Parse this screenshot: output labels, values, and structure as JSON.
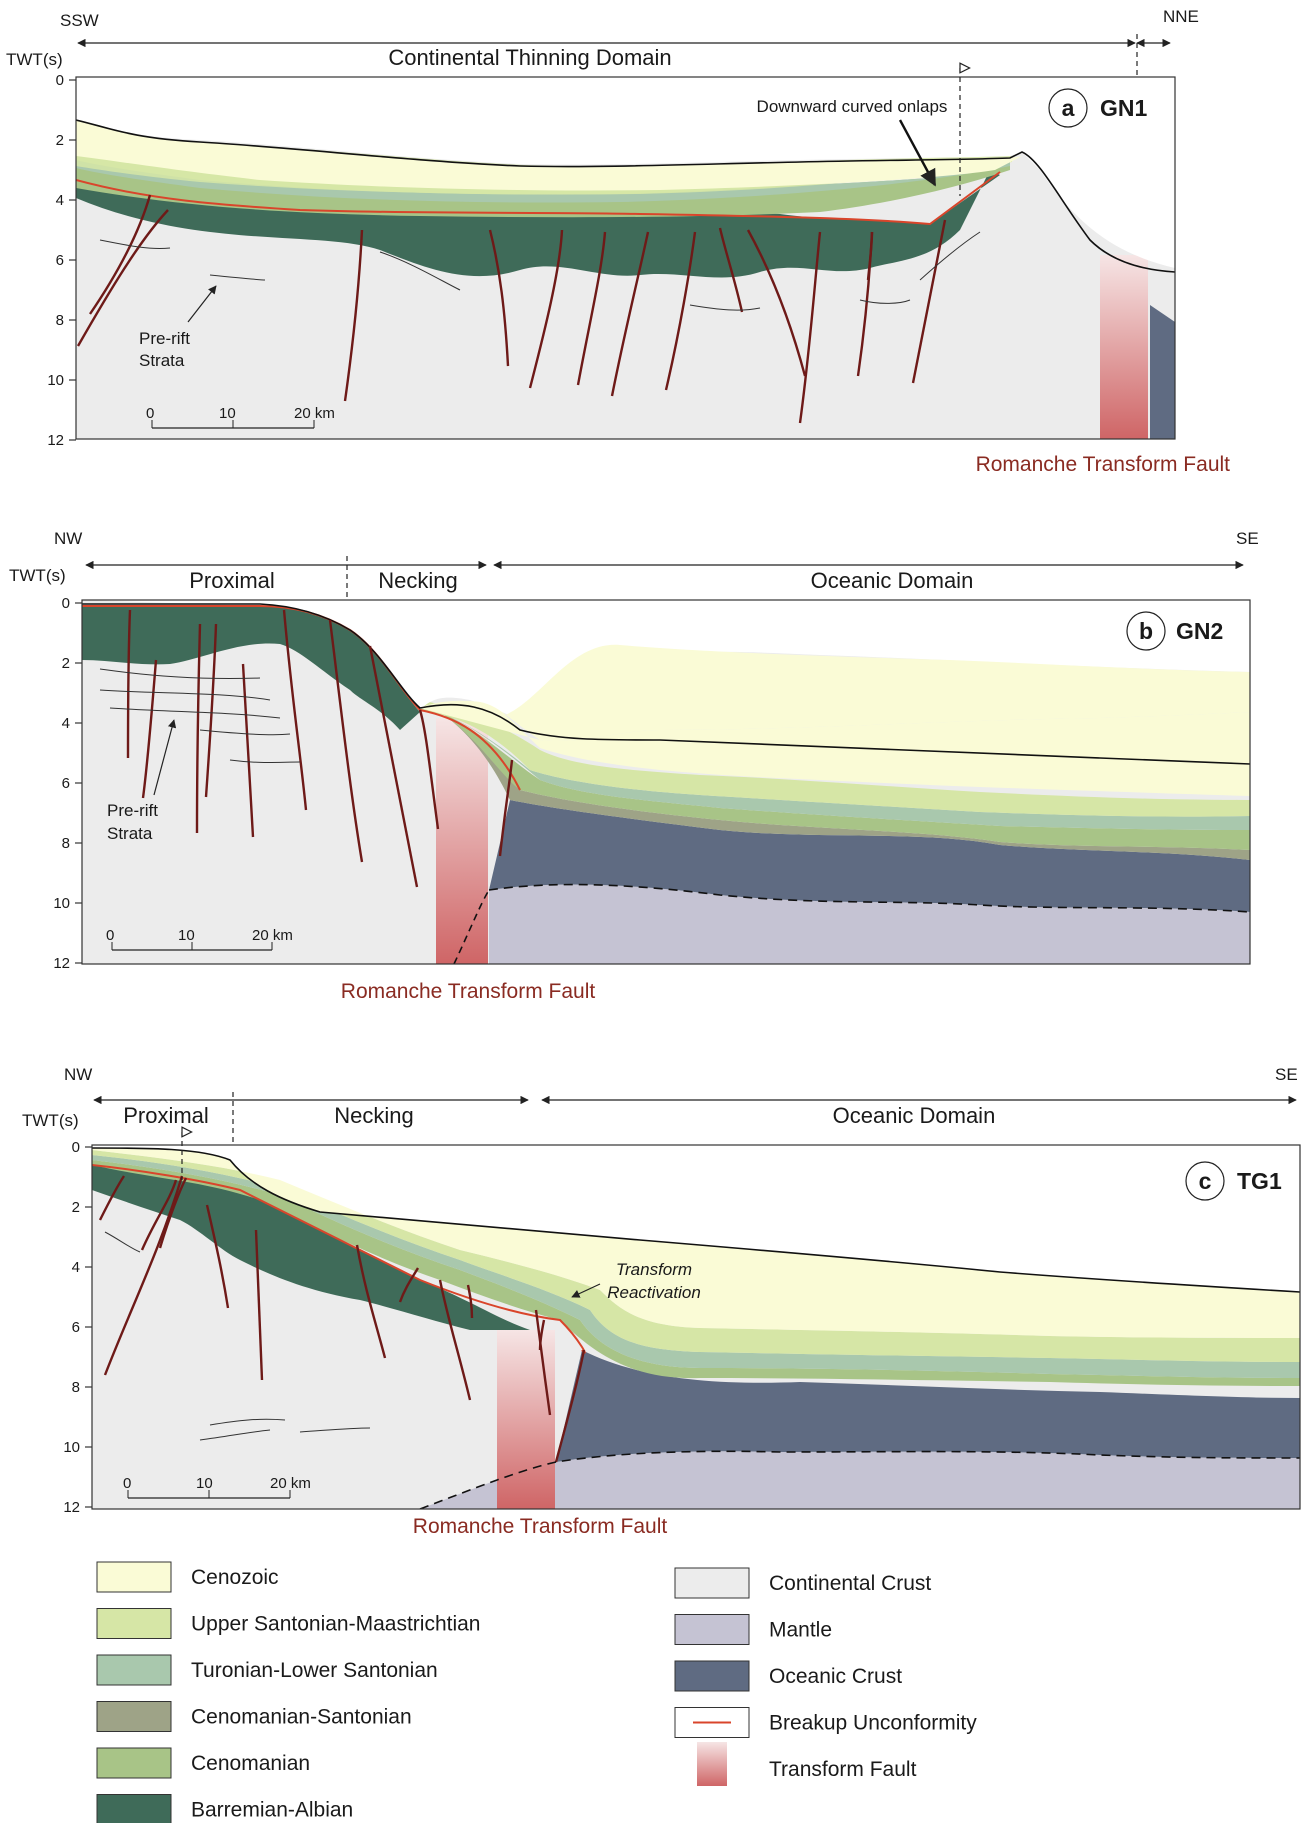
{
  "axis_label": "TWT(s)",
  "y_ticks": [
    "0",
    "2",
    "4",
    "6",
    "8",
    "10",
    "12"
  ],
  "scale_bar": {
    "ticks": [
      "0",
      "10"
    ],
    "last": "20 km"
  },
  "colors": {
    "cenozoic": "#fafbd6",
    "upper_santonian": "#d6e6a6",
    "turonian": "#a9c8ad",
    "cenomanian_santonian": "#9ea387",
    "cenomanian": "#a8c487",
    "barremian": "#3f6b59",
    "continental": "#ececec",
    "mantle": "#c5c3d3",
    "oceanic": "#5f6b82",
    "breakup": "#d9452b",
    "fault_line": "#6e1a18",
    "transform_top": "#f6e5e5",
    "transform_bottom": "#cf6566"
  },
  "panels": [
    {
      "letter": "a",
      "name": "GN1",
      "left_dir": "SSW",
      "right_dir": "NNE",
      "domains": [
        "Continental Thinning Domain"
      ],
      "annotations": [
        "Downward curved onlaps",
        "Pre-rift",
        "Strata"
      ],
      "fault_label": "Romanche Transform Fault"
    },
    {
      "letter": "b",
      "name": "GN2",
      "left_dir": "NW",
      "right_dir": "SE",
      "domains": [
        "Proximal",
        "Necking",
        "Oceanic Domain"
      ],
      "annotations": [
        "Pre-rift",
        "Strata"
      ],
      "fault_label": "Romanche Transform Fault"
    },
    {
      "letter": "c",
      "name": "TG1",
      "left_dir": "NW",
      "right_dir": "SE",
      "domains": [
        "Proximal",
        "Necking",
        "Oceanic Domain"
      ],
      "annotations": [
        "Transform",
        "Reactivation"
      ],
      "fault_label": "Romanche Transform Fault"
    }
  ],
  "legend": {
    "left": [
      {
        "key": "cenozoic",
        "label": "Cenozoic"
      },
      {
        "key": "upper_santonian",
        "label": "Upper Santonian-Maastrichtian"
      },
      {
        "key": "turonian",
        "label": "Turonian-Lower Santonian"
      },
      {
        "key": "cenomanian_santonian",
        "label": "Cenomanian-Santonian"
      },
      {
        "key": "cenomanian",
        "label": "Cenomanian"
      },
      {
        "key": "barremian",
        "label": "Barremian-Albian"
      }
    ],
    "right": [
      {
        "key": "continental",
        "label": "Continental Crust"
      },
      {
        "key": "mantle",
        "label": "Mantle"
      },
      {
        "key": "oceanic",
        "label": "Oceanic Crust"
      },
      {
        "key": "breakup",
        "label": "Breakup Unconformity"
      },
      {
        "key": "transform",
        "label": "Transform Fault"
      }
    ]
  }
}
